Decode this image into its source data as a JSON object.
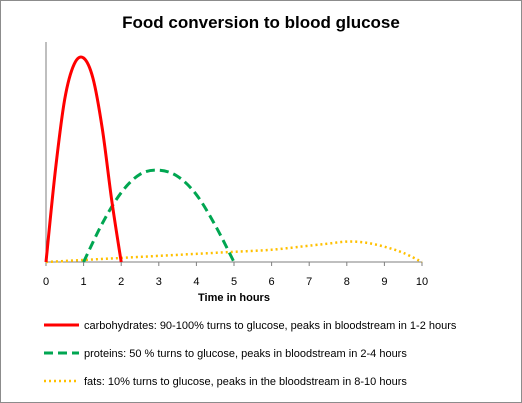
{
  "chart_data": {
    "type": "line",
    "title": "Food  conversion to blood glucose",
    "xlabel": "Time in hours",
    "ylabel": "",
    "xlim": [
      0,
      10
    ],
    "ylim": [
      0,
      100
    ],
    "x_ticks": [
      "0",
      "1",
      "2",
      "3",
      "4",
      "5",
      "6",
      "7",
      "8",
      "9",
      "10"
    ],
    "grid": false,
    "legend_position": "bottom",
    "series": [
      {
        "name": "carbohydrates:  90-100% turns to glucose, peaks in bloodstream in 1-2 hours",
        "color": "#ff0000",
        "style": "solid",
        "x": [
          0,
          0.25,
          0.5,
          0.75,
          1.0,
          1.25,
          1.5,
          1.75,
          2.0
        ],
        "y": [
          0,
          45,
          80,
          97,
          100,
          90,
          65,
          30,
          0
        ]
      },
      {
        "name": "proteins:  50 % turns to glucose, peaks in bloodstream in 2-4 hours",
        "color": "#00a651",
        "style": "dashed",
        "x": [
          1,
          1.5,
          2,
          2.5,
          3,
          3.5,
          4,
          4.5,
          5
        ],
        "y": [
          0,
          19,
          34,
          43,
          45,
          42,
          33,
          18,
          0
        ]
      },
      {
        "name": "fats:  10% turns to glucose, peaks in the bloodstream  in 8-10 hours",
        "color": "#ffc000",
        "style": "dotted",
        "x": [
          0,
          1,
          2,
          3,
          4,
          5,
          6,
          7,
          7.5,
          8,
          8.5,
          9,
          9.5,
          10
        ],
        "y": [
          0,
          1,
          2,
          3,
          4,
          5,
          6,
          8,
          9,
          10,
          9.5,
          7.5,
          4.5,
          0
        ]
      }
    ]
  }
}
